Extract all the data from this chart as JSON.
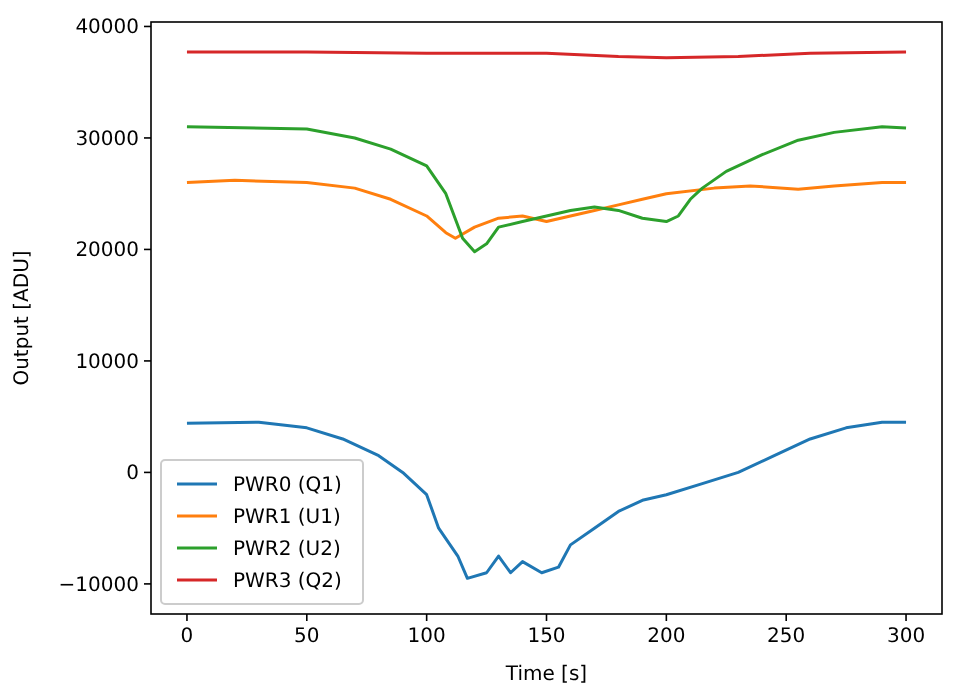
{
  "chart_data": {
    "type": "line",
    "xlabel": "Time [s]",
    "ylabel": "Output [ADU]",
    "xlim": [
      -15,
      315
    ],
    "ylim": [
      -12700,
      40400
    ],
    "xticks": [
      0,
      50,
      100,
      150,
      200,
      250,
      300
    ],
    "yticks": [
      {
        "value": -10000,
        "label": "−10000"
      },
      0,
      10000,
      20000,
      30000,
      40000
    ],
    "grid": false,
    "legend": "bottom left",
    "line_style": "solid",
    "marker": "none",
    "series": [
      {
        "name": "PWR0 (Q1)",
        "color": "#1f77b4",
        "x": [
          0,
          30,
          50,
          65,
          80,
          90,
          100,
          105,
          113,
          117,
          125,
          130,
          135,
          140,
          148,
          155,
          160,
          170,
          180,
          190,
          200,
          215,
          230,
          245,
          260,
          275,
          290,
          300
        ],
        "values": [
          4400,
          4500,
          4000,
          3000,
          1500,
          0,
          -2000,
          -5000,
          -7500,
          -9500,
          -9000,
          -7500,
          -9000,
          -8000,
          -9000,
          -8500,
          -6500,
          -5000,
          -3500,
          -2500,
          -2000,
          -1000,
          0,
          1500,
          3000,
          4000,
          4500,
          4500
        ]
      },
      {
        "name": "PWR1 (U1)",
        "color": "#ff7f0e",
        "x": [
          0,
          20,
          50,
          70,
          85,
          100,
          108,
          112,
          120,
          130,
          140,
          150,
          160,
          170,
          180,
          190,
          200,
          220,
          235,
          255,
          270,
          290,
          300
        ],
        "values": [
          26000,
          26200,
          26000,
          25500,
          24500,
          23000,
          21500,
          21000,
          22000,
          22800,
          23000,
          22500,
          23000,
          23500,
          24000,
          24500,
          25000,
          25500,
          25700,
          25400,
          25700,
          26000,
          26000
        ]
      },
      {
        "name": "PWR2 (U2)",
        "color": "#2ca02c",
        "x": [
          0,
          50,
          70,
          85,
          100,
          108,
          115,
          120,
          125,
          130,
          140,
          150,
          160,
          170,
          180,
          190,
          200,
          205,
          210,
          215,
          225,
          240,
          255,
          270,
          290,
          300
        ],
        "values": [
          31000,
          30800,
          30000,
          29000,
          27500,
          25000,
          21000,
          19800,
          20500,
          22000,
          22500,
          23000,
          23500,
          23800,
          23500,
          22800,
          22500,
          23000,
          24500,
          25500,
          27000,
          28500,
          29800,
          30500,
          31000,
          30900
        ]
      },
      {
        "name": "PWR3 (Q2)",
        "color": "#d62728",
        "x": [
          0,
          50,
          100,
          150,
          180,
          200,
          230,
          260,
          300
        ],
        "values": [
          37700,
          37700,
          37600,
          37600,
          37300,
          37200,
          37300,
          37600,
          37700
        ]
      }
    ]
  }
}
